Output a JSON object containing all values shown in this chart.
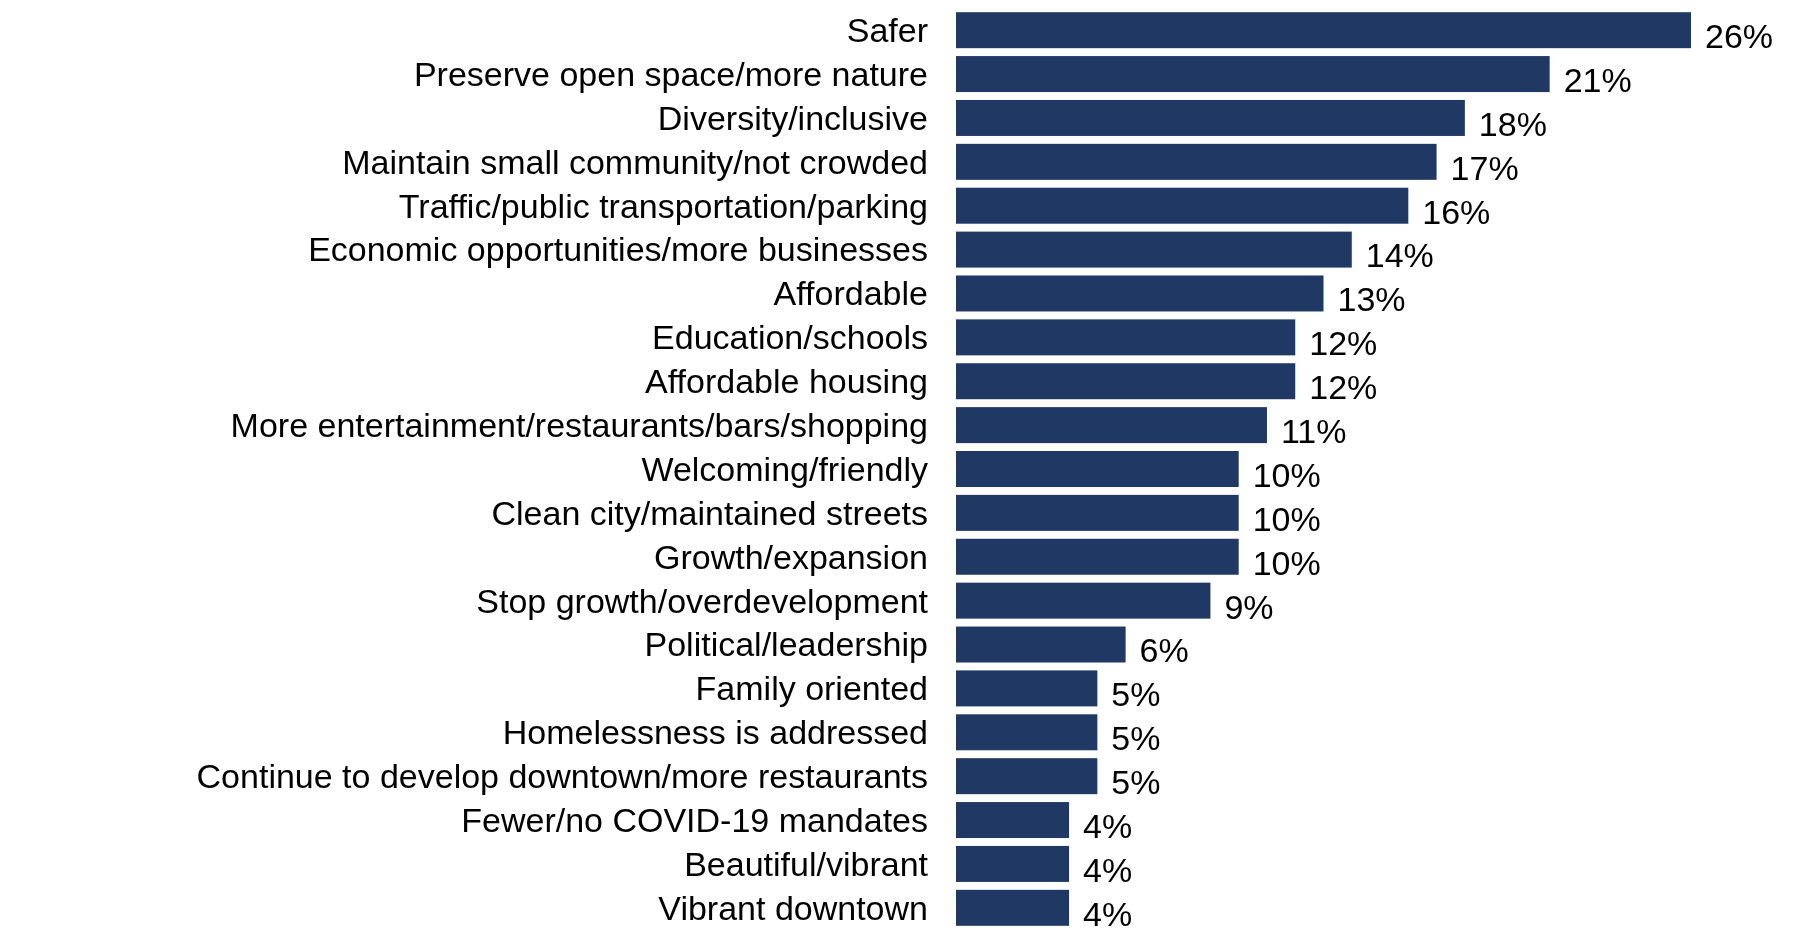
{
  "chart_data": {
    "type": "bar",
    "orientation": "horizontal",
    "categories": [
      "Safer",
      "Preserve open space/more nature",
      "Diversity/inclusive",
      "Maintain small community/not crowded",
      "Traffic/public transportation/parking",
      "Economic opportunities/more businesses",
      "Affordable",
      "Education/schools",
      "Affordable housing",
      "More entertainment/restaurants/bars/shopping",
      "Welcoming/friendly",
      "Clean city/maintained streets",
      "Growth/expansion",
      "Stop growth/overdevelopment",
      "Political/leadership",
      "Family oriented",
      "Homelessness is addressed",
      "Continue to develop downtown/more restaurants",
      "Fewer/no COVID-19 mandates",
      "Beautiful/vibrant",
      "Vibrant downtown"
    ],
    "values": [
      26,
      21,
      18,
      17,
      16,
      14,
      13,
      12,
      12,
      11,
      10,
      10,
      10,
      9,
      6,
      5,
      5,
      5,
      4,
      4,
      4
    ],
    "value_labels": [
      "26%",
      "21%",
      "18%",
      "17%",
      "16%",
      "14%",
      "13%",
      "12%",
      "12%",
      "11%",
      "10%",
      "10%",
      "10%",
      "9%",
      "6%",
      "5%",
      "5%",
      "5%",
      "4%",
      "4%",
      "4%"
    ],
    "color": "#1f3864"
  }
}
